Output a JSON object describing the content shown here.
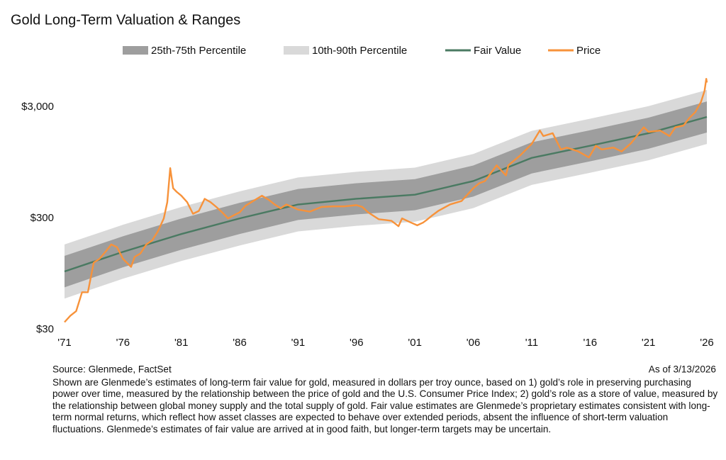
{
  "chart_data": {
    "type": "line",
    "title": "Gold Long-Term Valuation & Ranges",
    "log_scale": true,
    "xlim": [
      1971,
      2026
    ],
    "xticks": [
      {
        "value": 1971,
        "label": "'71"
      },
      {
        "value": 1976,
        "label": "'76"
      },
      {
        "value": 1981,
        "label": "'81"
      },
      {
        "value": 1986,
        "label": "'86"
      },
      {
        "value": 1991,
        "label": "'91"
      },
      {
        "value": 1996,
        "label": "'96"
      },
      {
        "value": 2001,
        "label": "'01"
      },
      {
        "value": 2006,
        "label": "'06"
      },
      {
        "value": 2011,
        "label": "'11"
      },
      {
        "value": 2016,
        "label": "'16"
      },
      {
        "value": 2021,
        "label": "'21"
      },
      {
        "value": 2026,
        "label": "'26"
      }
    ],
    "ylim": [
      30,
      6000
    ],
    "yticks": [
      {
        "value": 30,
        "label": "$30"
      },
      {
        "value": 300,
        "label": "$300"
      },
      {
        "value": 3000,
        "label": "$3,000"
      }
    ],
    "x": [
      1971,
      1976,
      1981,
      1986,
      1991,
      1996,
      2001,
      2006,
      2011,
      2016,
      2021,
      2026
    ],
    "series": [
      {
        "name": "25th-75th Percentile",
        "kind": "band",
        "color": "#9e9e9e",
        "low": [
          72,
          109,
          157,
          217,
          290,
          326,
          355,
          471,
          761,
          978,
          1268,
          1775
        ],
        "high": [
          138,
          207,
          299,
          414,
          552,
          621,
          676,
          897,
          1449,
          1863,
          2415,
          3381
        ]
      },
      {
        "name": "10th-90th Percentile",
        "kind": "band",
        "color": "#d9d9d9",
        "low": [
          57,
          86,
          124,
          171,
          229,
          257,
          280,
          371,
          600,
          771,
          1000,
          1400
        ],
        "high": [
          175,
          263,
          380,
          525,
          700,
          788,
          858,
          1138,
          1838,
          2363,
          3063,
          4288
        ]
      },
      {
        "name": "Fair Value",
        "kind": "line",
        "color": "#4a7a62",
        "values": [
          100,
          150,
          217,
          300,
          400,
          450,
          490,
          650,
          1050,
          1350,
          1750,
          2450
        ]
      },
      {
        "name": "Price",
        "kind": "line",
        "color": "#f7923a",
        "x": [
          1971.0,
          1971.5,
          1972.0,
          1972.5,
          1973.0,
          1973.5,
          1974.0,
          1974.5,
          1975.0,
          1975.5,
          1976.0,
          1976.7,
          1977.0,
          1977.5,
          1978.0,
          1978.5,
          1979.0,
          1979.5,
          1979.8,
          1980.05,
          1980.3,
          1980.6,
          1981.0,
          1981.5,
          1982.0,
          1982.5,
          1983.0,
          1983.5,
          1984.0,
          1984.5,
          1985.0,
          1985.5,
          1986.0,
          1986.5,
          1987.0,
          1987.9,
          1988.5,
          1989.0,
          1989.5,
          1990.0,
          1990.5,
          1991.0,
          1992.0,
          1993.0,
          1994.0,
          1995.0,
          1996.0,
          1996.5,
          1997.0,
          1997.9,
          1998.5,
          1999.0,
          1999.6,
          1999.9,
          2000.5,
          2001.2,
          2001.7,
          2002.0,
          2002.5,
          2003.0,
          2004.0,
          2005.0,
          2006.0,
          2006.5,
          2007.0,
          2008.0,
          2008.8,
          2009.0,
          2010.0,
          2011.0,
          2011.7,
          2012.0,
          2012.8,
          2013.5,
          2014.0,
          2015.0,
          2015.9,
          2016.5,
          2017.0,
          2018.0,
          2018.7,
          2019.5,
          2020.6,
          2021.0,
          2022.0,
          2022.8,
          2023.3,
          2024.0,
          2024.5,
          2025.0,
          2025.5,
          2025.8,
          2025.95,
          2026.0
        ],
        "values": [
          35,
          40,
          44,
          65,
          65,
          120,
          130,
          150,
          175,
          165,
          130,
          110,
          135,
          145,
          175,
          190,
          230,
          300,
          420,
          850,
          560,
          520,
          480,
          420,
          330,
          350,
          450,
          420,
          380,
          340,
          300,
          320,
          340,
          390,
          420,
          480,
          440,
          400,
          370,
          400,
          380,
          360,
          345,
          380,
          385,
          385,
          395,
          380,
          340,
          295,
          290,
          285,
          255,
          300,
          280,
          260,
          275,
          290,
          320,
          350,
          400,
          430,
          560,
          620,
          650,
          900,
          730,
          900,
          1100,
          1400,
          1850,
          1650,
          1750,
          1250,
          1300,
          1200,
          1060,
          1350,
          1250,
          1300,
          1200,
          1420,
          1980,
          1800,
          1850,
          1650,
          1980,
          2050,
          2400,
          2700,
          3350,
          4200,
          5400,
          5000
        ]
      }
    ],
    "source": "Source: Glenmede, FactSet",
    "as_of": "As of 3/13/2026",
    "note": "Shown are Glenmede’s estimates of long-term fair value for gold, measured in dollars per troy ounce, based on 1) gold’s role in preserving purchasing power over time, measured by the relationship between the price of gold and the U.S. Consumer Price Index; 2) gold’s role as a store of value, measured by the relationship between global money supply and the total supply of gold. Fair value estimates are Glenmede’s proprietary estimates consistent with long-term normal returns, which reflect how asset classes are expected to behave over extended periods, absent the influence of short-term valuation fluctuations. Glenmede’s estimates of fair value are arrived at in good faith, but longer-term targets may be uncertain."
  }
}
